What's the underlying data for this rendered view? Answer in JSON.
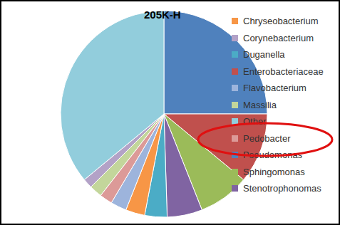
{
  "chart_data": {
    "type": "pie",
    "title": "205K-H",
    "categories": [
      "Pseudomonas",
      "Enterobacteriaceae",
      "Sphingomonas",
      "Stenotrophonomas",
      "Duganella",
      "Chryseobacterium",
      "Flavobacterium",
      "Pedobacter",
      "Massilia",
      "Corynebacterium",
      "Other"
    ],
    "values": [
      25,
      11,
      8,
      5.5,
      3.5,
      3,
      2.5,
      2,
      2,
      1.5,
      36
    ],
    "colors": [
      "#4F81BD",
      "#C0504D",
      "#9BBB59",
      "#8064A2",
      "#4BACC6",
      "#F79646",
      "#9DB4DC",
      "#DC9A98",
      "#C3D69B",
      "#B3A2C7",
      "#92CDDC"
    ],
    "legend": "right"
  }
}
